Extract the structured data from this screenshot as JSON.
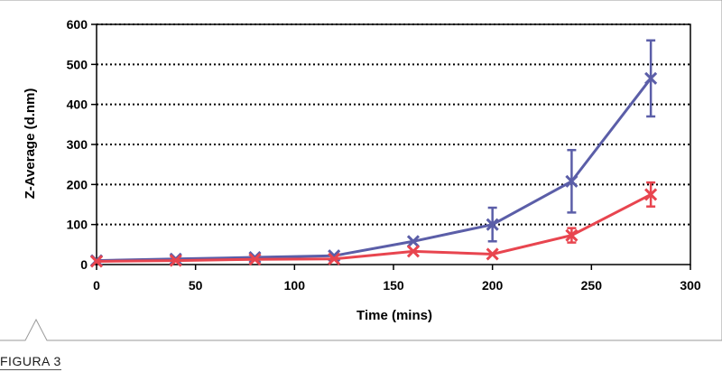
{
  "caption": "FIGURA 3",
  "colors": {
    "series_blue": "#5b5ea8",
    "series_red": "#e8454f",
    "frame": "#9a9a9a",
    "axis": "#000000"
  },
  "chart_data": {
    "type": "line",
    "xlabel": "Time (mins)",
    "ylabel": "Z-Average (d.nm)",
    "xlim": [
      0,
      300
    ],
    "ylim": [
      0,
      600
    ],
    "xticks": [
      0,
      50,
      100,
      150,
      200,
      250,
      300
    ],
    "yticks": [
      0,
      100,
      200,
      300,
      400,
      500,
      600
    ],
    "grid": "horizontal dotted",
    "marker": "x",
    "series": [
      {
        "color": "#5b5ea8",
        "x": [
          0,
          40,
          80,
          120,
          160,
          200,
          240,
          280
        ],
        "y": [
          10,
          14,
          18,
          22,
          58,
          100,
          208,
          465
        ],
        "err": [
          0,
          0,
          0,
          0,
          0,
          42,
          78,
          95
        ]
      },
      {
        "color": "#e8454f",
        "x": [
          0,
          40,
          80,
          120,
          160,
          200,
          240,
          280
        ],
        "y": [
          8,
          10,
          13,
          14,
          33,
          26,
          73,
          175
        ],
        "err": [
          0,
          0,
          0,
          0,
          0,
          0,
          18,
          30
        ]
      }
    ]
  }
}
